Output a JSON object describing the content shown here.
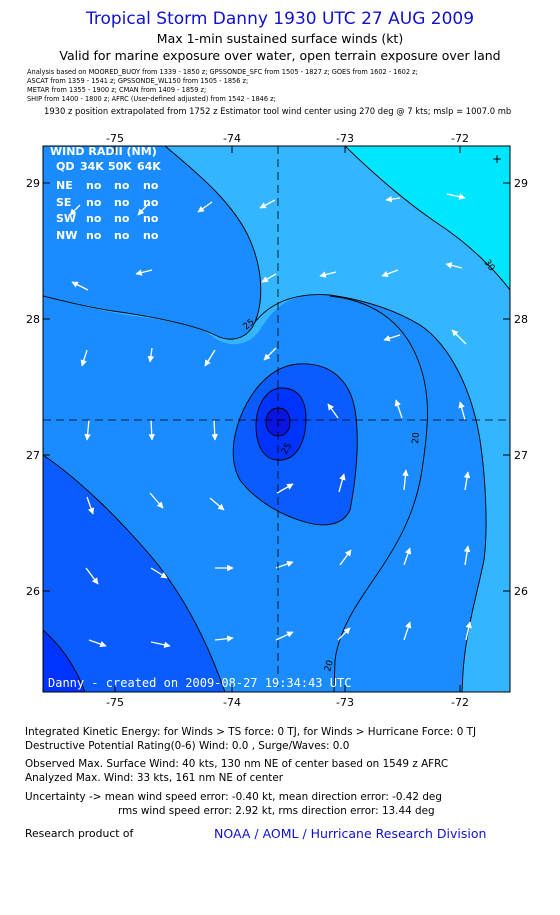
{
  "header": {
    "title": "Tropical Storm Danny 1930 UTC 27 AUG 2009",
    "subtitle1": "Max 1-min sustained surface winds (kt)",
    "subtitle2": "Valid for marine exposure over water, open terrain exposure over land"
  },
  "sources": [
    "Analysis based on  MOORED_BUOY from 1339 - 1850 z;  GPSSONDE_SFC from 1505 - 1827 z;  GOES from 1602 - 1602 z;",
    "ASCAT from 1359 - 1541 z;  GPSSONDE_WL150 from 1505 - 1856 z;",
    "METAR from 1355 - 1900 z;  CMAN from 1409 - 1859 z;",
    "SHIP from 1400 - 1800 z;  AFRC (User-defined adjusted) from 1542 - 1846 z;"
  ],
  "extrapolation_note": "1930 z position extrapolated from 1752 z Estimator tool wind center using 270 deg @ 7 kts; mslp = 1007.0 mb",
  "map": {
    "lon_ticks": [
      "-75",
      "-74",
      "-73",
      "-72"
    ],
    "lat_ticks": [
      "29",
      "28",
      "27",
      "26"
    ],
    "contour_labels": [
      "30",
      "25",
      "20",
      "25",
      "20"
    ],
    "center_marker": "+",
    "wind_radii": {
      "title": "WIND RADII (NM)",
      "header": [
        "QD",
        "34K",
        "50K",
        "64K"
      ],
      "rows": [
        [
          "NE",
          "no",
          "no",
          "no"
        ],
        [
          "SE",
          "no",
          "no",
          "no"
        ],
        [
          "SW",
          "no",
          "no",
          "no"
        ],
        [
          "NW",
          "no",
          "no",
          "no"
        ]
      ]
    },
    "created_label": "Danny - created on 2009-08-27 19:34:43 UTC",
    "colors": {
      "cyan": "#00e6ff",
      "light_blue": "#33b5ff",
      "medium_blue": "#1a8cff",
      "blue": "#0a5cff",
      "deep_blue": "#0033ff",
      "dark_blue": "#0a14e0",
      "contour": "#000000",
      "arrow": "#ffffff"
    }
  },
  "footer": {
    "line1": "Integrated Kinetic Energy:  for Winds > TS force: 0 TJ,  for Winds > Hurricane Force: 0 TJ",
    "line2": "Destructive Potential Rating(0-6)   Wind: 0.0 , Surge/Waves: 0.0",
    "line3": "Observed Max. Surface Wind: 40 kts, 130 nm NE of center based on 1549 z AFRC",
    "line4": "Analyzed Max. Wind: 33 kts, 161 nm NE of center",
    "line5": "Uncertainty -> mean wind speed error:  -0.40 kt,   mean direction error:  -0.42 deg",
    "line6": "rms wind speed error: 2.92 kt,   rms direction error: 13.44 deg",
    "research_label": "Research product of",
    "org_link": "NOAA / AOML / Hurricane Research Division"
  }
}
